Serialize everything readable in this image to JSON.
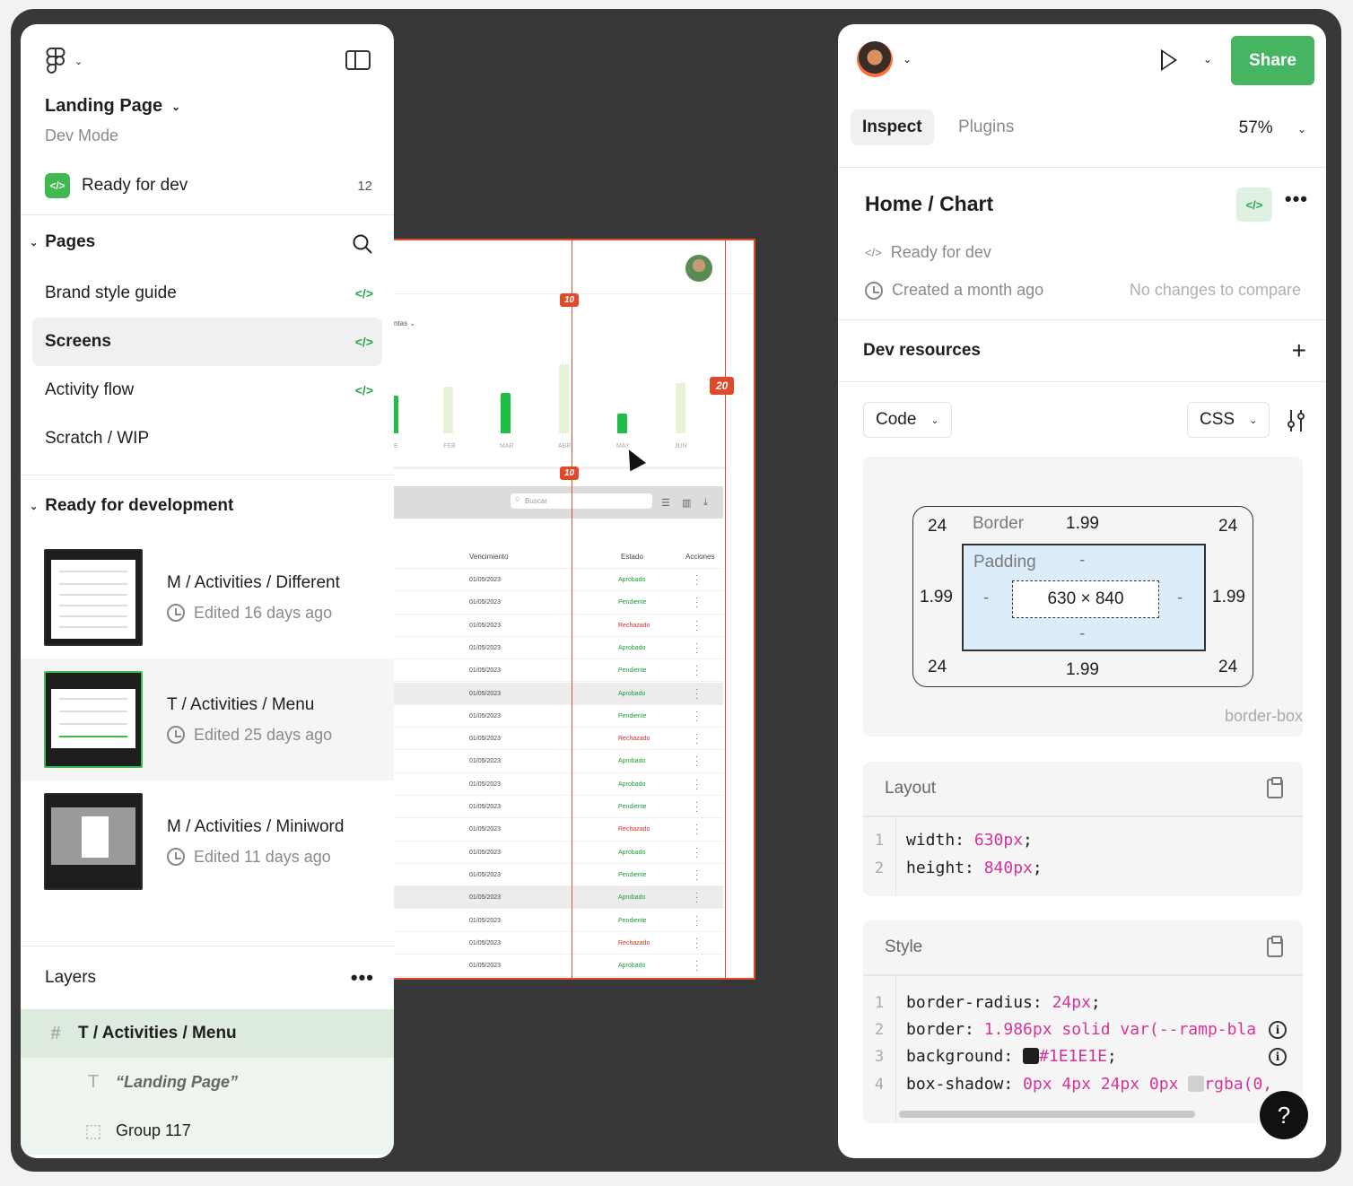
{
  "file": {
    "title": "Landing Page",
    "mode": "Dev Mode"
  },
  "ready_for_dev": {
    "label": "Ready for dev",
    "count": "12"
  },
  "pages": {
    "heading": "Pages",
    "items": [
      {
        "label": "Brand style guide",
        "tag": "</>"
      },
      {
        "label": "Screens",
        "tag": "</>"
      },
      {
        "label": "Activity flow",
        "tag": "</>"
      },
      {
        "label": "Scratch / WIP",
        "tag": ""
      }
    ]
  },
  "ready_section": {
    "heading": "Ready for development",
    "cards": [
      {
        "title": "M / Activities / Different",
        "meta": "Edited 16 days ago"
      },
      {
        "title": "T / Activities / Menu",
        "meta": "Edited 25 days ago"
      },
      {
        "title": "M / Activities / Miniword",
        "meta": "Edited 11 days ago"
      }
    ]
  },
  "layers": {
    "heading": "Layers",
    "items": [
      {
        "icon": "#",
        "label": "T / Activities / Menu"
      },
      {
        "icon": "T",
        "label": "“Landing Page”"
      },
      {
        "icon": "⬚",
        "label": "Group 117"
      }
    ]
  },
  "canvas": {
    "chart_label": "ntas ⌄",
    "months": [
      "E",
      "FEB",
      "MAR",
      "ABR",
      "MAY",
      "JUN"
    ],
    "search_placeholder": "Buscar",
    "headers": {
      "due": "Vencimiento",
      "status": "Estado",
      "actions": "Acciones"
    },
    "rows": [
      {
        "date": "01/05/2023",
        "status": "Aprobado"
      },
      {
        "date": "01/05/2023",
        "status": "Pendiente"
      },
      {
        "date": "01/05/2023",
        "status": "Rechazado"
      },
      {
        "date": "01/05/2023",
        "status": "Aprobado"
      },
      {
        "date": "01/05/2023",
        "status": "Pendiente"
      },
      {
        "date": "01/05/2023",
        "status": "Aprobado"
      },
      {
        "date": "01/05/2023",
        "status": "Pendiente"
      },
      {
        "date": "01/05/2023",
        "status": "Rechazado"
      },
      {
        "date": "01/05/2023",
        "status": "Aprobado"
      },
      {
        "date": "01/05/2023",
        "status": "Aprobado"
      },
      {
        "date": "01/05/2023",
        "status": "Pendiente"
      },
      {
        "date": "01/05/2023",
        "status": "Rechazado"
      },
      {
        "date": "01/05/2023",
        "status": "Aprobado"
      },
      {
        "date": "01/05/2023",
        "status": "Pendiente"
      },
      {
        "date": "01/05/2023",
        "status": "Aprobado"
      },
      {
        "date": "01/05/2023",
        "status": "Pendiente"
      },
      {
        "date": "01/05/2023",
        "status": "Rechazado"
      },
      {
        "date": "01/05/2023",
        "status": "Aprobado"
      }
    ],
    "measure_tags": [
      "10",
      "10",
      "20"
    ]
  },
  "header": {
    "share": "Share"
  },
  "tabs": {
    "inspect": "Inspect",
    "plugins": "Plugins",
    "zoom": "57%"
  },
  "component": {
    "title": "Home / Chart",
    "status": "Ready for dev",
    "created": "Created a month ago",
    "no_changes": "No changes to compare"
  },
  "dev_resources": {
    "heading": "Dev resources"
  },
  "code_controls": {
    "mode": "Code",
    "language": "CSS"
  },
  "box_model": {
    "border_label": "Border",
    "padding_label": "Padding",
    "border_top": "1.99",
    "border_bottom": "1.99",
    "border_left": "1.99",
    "border_right": "1.99",
    "radius_tl": "24",
    "radius_tr": "24",
    "radius_bl": "24",
    "radius_br": "24",
    "padding_top": "-",
    "padding_bottom": "-",
    "padding_left": "-",
    "padding_right": "-",
    "content": "630 × 840",
    "sizing": "border-box"
  },
  "layout_code": {
    "heading": "Layout",
    "lines": [
      {
        "n": "1",
        "prop": "width: ",
        "val": "630px",
        "end": ";"
      },
      {
        "n": "2",
        "prop": "height: ",
        "val": "840px",
        "end": ";"
      }
    ]
  },
  "style_code": {
    "heading": "Style",
    "lines": [
      {
        "n": "1",
        "prop": "border-radius: ",
        "val": "24px",
        "end": ";"
      },
      {
        "n": "2",
        "prop": "border: ",
        "val": "1.986px solid var(--ramp-bla",
        "end": ""
      },
      {
        "n": "3",
        "prop": "background: ",
        "val": "#1E1E1E",
        "end": ";"
      },
      {
        "n": "4",
        "prop": "box-shadow: ",
        "val": "0px 4px 24px 0px ",
        "val2": "rgba(0,",
        "end": ""
      }
    ]
  },
  "colors": {
    "accent": "#45b561",
    "measure": "#e04a2a",
    "approved": "#1f9d3a",
    "rejected": "#d93025"
  }
}
